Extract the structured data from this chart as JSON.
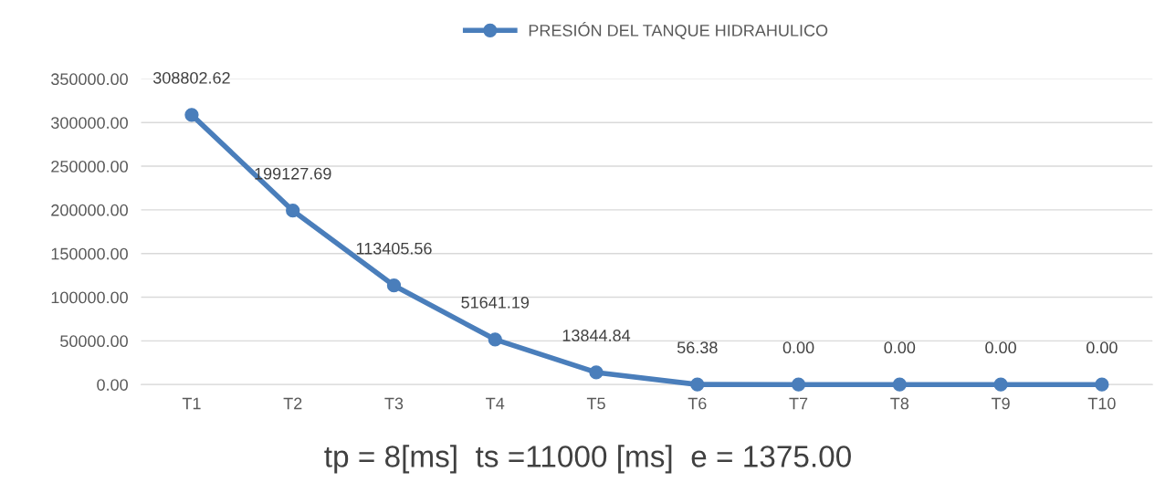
{
  "chart_data": {
    "type": "line",
    "categories": [
      "T1",
      "T2",
      "T3",
      "T4",
      "T5",
      "T6",
      "T7",
      "T8",
      "T9",
      "T10"
    ],
    "series": [
      {
        "name": "PRESIÓN DEL TANQUE HIDRAHULICO",
        "color": "#4a7ebb",
        "values": [
          308802.62,
          199127.69,
          113405.56,
          51641.19,
          13844.84,
          56.38,
          0,
          0,
          0,
          0
        ],
        "value_labels": [
          "308802.62",
          "199127.69",
          "113405.56",
          "51641.19",
          "13844.84",
          "56.38",
          "0.00",
          "0.00",
          "0.00",
          "0.00"
        ]
      }
    ],
    "ylim": [
      0,
      350000
    ],
    "yticks": [
      {
        "value": 0,
        "label": "0.00"
      },
      {
        "value": 50000,
        "label": "50000.00"
      },
      {
        "value": 100000,
        "label": "100000.00"
      },
      {
        "value": 150000,
        "label": "150000.00"
      },
      {
        "value": 200000,
        "label": "200000.00"
      },
      {
        "value": 250000,
        "label": "250000.00"
      },
      {
        "value": 300000,
        "label": "300000.00"
      },
      {
        "value": 350000,
        "label": "350000.00"
      }
    ],
    "grid": "y",
    "legend": "top",
    "marker": "circle",
    "line_style": "solid",
    "annotations": [
      "tp = 8[ms]  ts =11000 [ms]  e = 1375.00"
    ]
  }
}
